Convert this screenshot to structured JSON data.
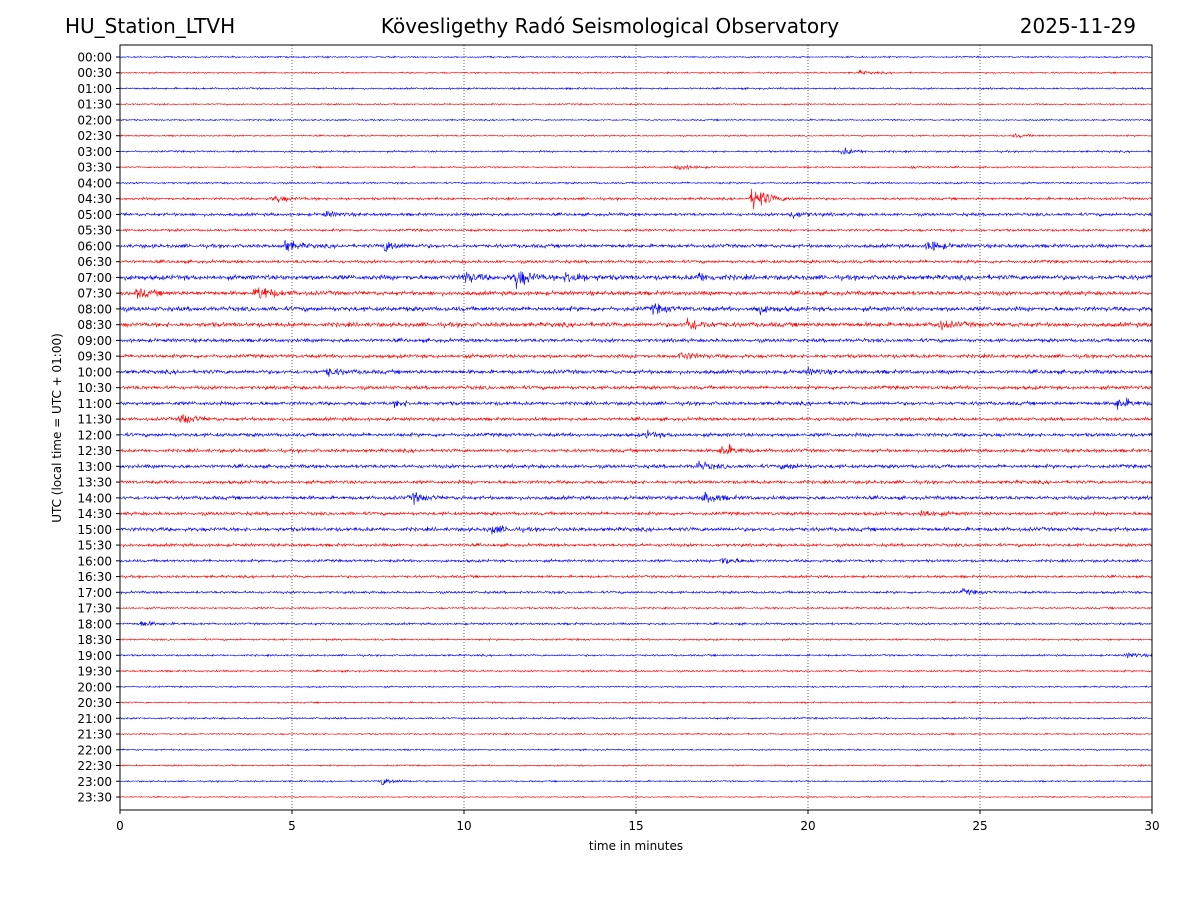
{
  "header": {
    "station": "HU_Station_LTVH",
    "observatory": "Kövesligethy Radó Seismological Observatory",
    "date": "2025-11-29"
  },
  "chart_data": {
    "type": "line",
    "title": "Kövesligethy Radó Seismological Observatory",
    "xlabel": "time in minutes",
    "ylabel": "UTC (local time = UTC + 01:00)",
    "xlim": [
      0,
      30
    ],
    "x_ticks": [
      "0",
      "5",
      "10",
      "15",
      "20",
      "25",
      "30"
    ],
    "x_tick_values": [
      0,
      5,
      10,
      15,
      20,
      25,
      30
    ],
    "grid": "vertical dotted",
    "colors": [
      "#0000ff",
      "#ff0000"
    ],
    "rows": [
      "00:00",
      "00:30",
      "01:00",
      "01:30",
      "02:00",
      "02:30",
      "03:00",
      "03:30",
      "04:00",
      "04:30",
      "05:00",
      "05:30",
      "06:00",
      "06:30",
      "07:00",
      "07:30",
      "08:00",
      "08:30",
      "09:00",
      "09:30",
      "10:00",
      "10:30",
      "11:00",
      "11:30",
      "12:00",
      "12:30",
      "13:00",
      "13:30",
      "14:00",
      "14:30",
      "15:00",
      "15:30",
      "16:00",
      "16:30",
      "17:00",
      "17:30",
      "18:00",
      "18:30",
      "19:00",
      "19:30",
      "20:00",
      "20:30",
      "21:00",
      "21:30",
      "22:00",
      "22:30",
      "23:00",
      "23:30"
    ],
    "noise_level": [
      0.05,
      0.05,
      0.06,
      0.05,
      0.05,
      0.05,
      0.06,
      0.05,
      0.06,
      0.08,
      0.1,
      0.08,
      0.12,
      0.1,
      0.16,
      0.14,
      0.15,
      0.15,
      0.12,
      0.12,
      0.13,
      0.12,
      0.12,
      0.11,
      0.12,
      0.11,
      0.12,
      0.11,
      0.12,
      0.11,
      0.13,
      0.1,
      0.09,
      0.08,
      0.08,
      0.06,
      0.07,
      0.06,
      0.06,
      0.06,
      0.05,
      0.05,
      0.06,
      0.05,
      0.05,
      0.05,
      0.05,
      0.04
    ],
    "events": [
      {
        "row": "00:30",
        "minute": 21.5,
        "amplitude": 0.12
      },
      {
        "row": "02:30",
        "minute": 26.0,
        "amplitude": 0.12
      },
      {
        "row": "03:00",
        "minute": 21.0,
        "amplitude": 0.25
      },
      {
        "row": "03:30",
        "minute": 16.2,
        "amplitude": 0.25
      },
      {
        "row": "03:30",
        "minute": 23.0,
        "amplitude": 0.12
      },
      {
        "row": "04:30",
        "minute": 4.5,
        "amplitude": 0.25
      },
      {
        "row": "04:30",
        "minute": 18.4,
        "amplitude": 1.0
      },
      {
        "row": "05:00",
        "minute": 6.0,
        "amplitude": 0.18
      },
      {
        "row": "05:00",
        "minute": 19.5,
        "amplitude": 0.28
      },
      {
        "row": "06:00",
        "minute": 4.8,
        "amplitude": 0.4
      },
      {
        "row": "06:00",
        "minute": 7.7,
        "amplitude": 0.4
      },
      {
        "row": "06:00",
        "minute": 23.5,
        "amplitude": 0.4
      },
      {
        "row": "07:00",
        "minute": 10.0,
        "amplitude": 0.4
      },
      {
        "row": "07:00",
        "minute": 11.5,
        "amplitude": 0.7
      },
      {
        "row": "07:00",
        "minute": 13.0,
        "amplitude": 0.5
      },
      {
        "row": "07:00",
        "minute": 16.8,
        "amplitude": 0.3
      },
      {
        "row": "07:30",
        "minute": 4.0,
        "amplitude": 0.6
      },
      {
        "row": "07:30",
        "minute": 0.5,
        "amplitude": 0.3
      },
      {
        "row": "08:00",
        "minute": 15.5,
        "amplitude": 0.3
      },
      {
        "row": "08:00",
        "minute": 18.5,
        "amplitude": 0.3
      },
      {
        "row": "08:30",
        "minute": 16.5,
        "amplitude": 0.5
      },
      {
        "row": "08:30",
        "minute": 23.8,
        "amplitude": 0.3
      },
      {
        "row": "09:30",
        "minute": 16.3,
        "amplitude": 0.3
      },
      {
        "row": "10:00",
        "minute": 6.0,
        "amplitude": 0.3
      },
      {
        "row": "10:00",
        "minute": 20.0,
        "amplitude": 0.2
      },
      {
        "row": "11:00",
        "minute": 8.0,
        "amplitude": 0.2
      },
      {
        "row": "11:00",
        "minute": 29.0,
        "amplitude": 0.4
      },
      {
        "row": "11:30",
        "minute": 1.8,
        "amplitude": 0.4
      },
      {
        "row": "12:00",
        "minute": 15.3,
        "amplitude": 0.2
      },
      {
        "row": "12:30",
        "minute": 17.5,
        "amplitude": 0.45
      },
      {
        "row": "13:00",
        "minute": 16.8,
        "amplitude": 0.3
      },
      {
        "row": "13:00",
        "minute": 19.3,
        "amplitude": 0.2
      },
      {
        "row": "14:00",
        "minute": 8.5,
        "amplitude": 0.35
      },
      {
        "row": "14:00",
        "minute": 17.0,
        "amplitude": 0.4
      },
      {
        "row": "14:30",
        "minute": 23.3,
        "amplitude": 0.3
      },
      {
        "row": "15:00",
        "minute": 10.8,
        "amplitude": 0.3
      },
      {
        "row": "16:00",
        "minute": 17.5,
        "amplitude": 0.3
      },
      {
        "row": "17:00",
        "minute": 24.5,
        "amplitude": 0.2
      },
      {
        "row": "18:00",
        "minute": 0.6,
        "amplitude": 0.2
      },
      {
        "row": "19:00",
        "minute": 29.3,
        "amplitude": 0.2
      },
      {
        "row": "23:00",
        "minute": 7.6,
        "amplitude": 0.3
      }
    ]
  }
}
